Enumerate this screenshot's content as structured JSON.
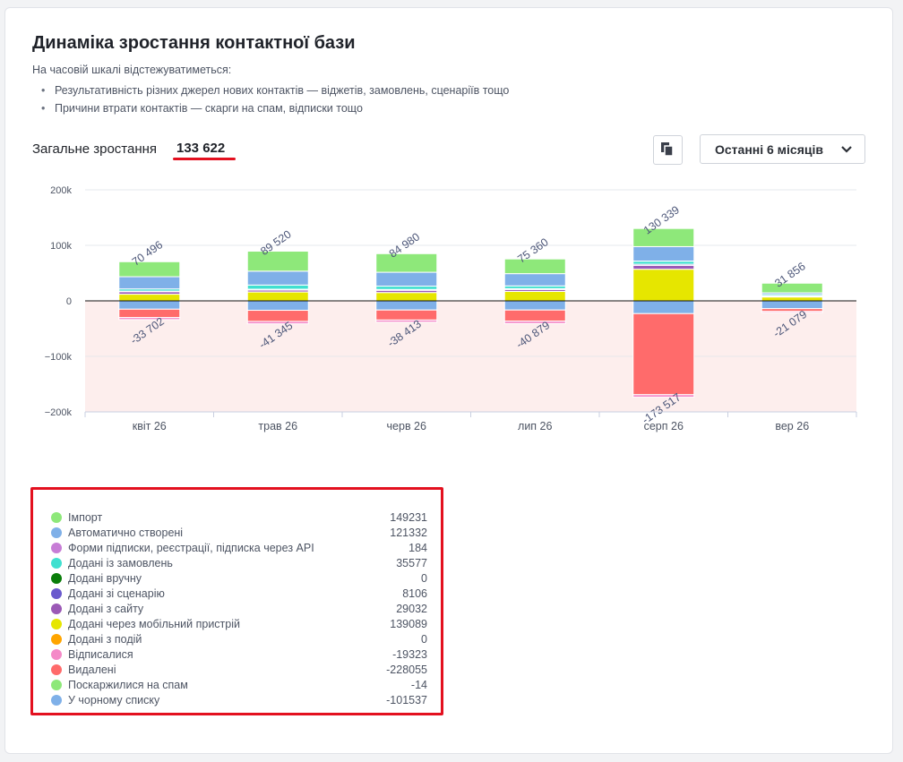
{
  "title": "Динаміка зростання контактної бази",
  "intro": "На часовій шкалі відстежуватиметься:",
  "bullets": [
    "Результативність різних джерел нових контактів — віджетів, замовлень, сценаріїв тощо",
    "Причини втрати контактів — скарги на спам, відписки тощо"
  ],
  "total": {
    "label": "Загальне зростання",
    "value": "133 622"
  },
  "controls": {
    "copy_icon": "copy-icon",
    "period_label": "Останні 6 місяців",
    "period_icon": "chevron-down-icon"
  },
  "chart_data": {
    "type": "bar",
    "stacked": true,
    "categories": [
      "квіт 26",
      "трав 26",
      "черв 26",
      "лип 26",
      "серп 26",
      "вер 26"
    ],
    "ylim": [
      -200000,
      200000
    ],
    "yticks": [
      200000,
      100000,
      0,
      -100000,
      -200000
    ],
    "ytick_labels": [
      "200k",
      "100k",
      "0",
      "−100k",
      "−200k"
    ],
    "grid": true,
    "negative_area_color": "#fdeeed",
    "positive_totals": [
      "70 496",
      "89 520",
      "84 980",
      "75 360",
      "130 339",
      "31 856"
    ],
    "negative_totals": [
      "-33 702",
      "-41 345",
      "-38 413",
      "-40 879",
      "-173 517",
      "-21 079"
    ],
    "series": [
      {
        "name": "Додані через мобільний пристрій",
        "color": "#e6e600",
        "sign": "positive",
        "values": [
          12000,
          16000,
          15000,
          17000,
          57000,
          7000
        ]
      },
      {
        "name": "Додані з сайту",
        "color": "#9b59b6",
        "sign": "positive",
        "values": [
          4500,
          3500,
          4000,
          3500,
          7000,
          1500
        ]
      },
      {
        "name": "Додані зі сценарію",
        "color": "#6a5acd",
        "sign": "positive",
        "values": [
          1000,
          1500,
          1500,
          1500,
          2000,
          500
        ]
      },
      {
        "name": "Додані із замовлень",
        "color": "#40e0d0",
        "sign": "positive",
        "values": [
          4000,
          7500,
          6000,
          5000,
          5500,
          2500
        ]
      },
      {
        "name": "Форми підписки, реєстрації, підписка через API",
        "color": "#c77dd6",
        "sign": "positive",
        "values": [
          0,
          0,
          0,
          0,
          184,
          0
        ]
      },
      {
        "name": "Автоматично створені",
        "color": "#7fb0e8",
        "sign": "positive",
        "values": [
          22000,
          25000,
          25000,
          22000,
          26000,
          3000
        ]
      },
      {
        "name": "Імпорт",
        "color": "#8ee87a",
        "sign": "positive",
        "values": [
          27000,
          36000,
          33500,
          26500,
          32656,
          17356
        ]
      },
      {
        "name": "У чорному списку",
        "color": "#7fb0e8",
        "sign": "negative",
        "values": [
          -15000,
          -17000,
          -16500,
          -16500,
          -23000,
          -14000
        ]
      },
      {
        "name": "Видалені",
        "color": "#ff6b6b",
        "sign": "negative",
        "values": [
          -15000,
          -20000,
          -18000,
          -20000,
          -146000,
          -5000
        ]
      },
      {
        "name": "Відписалися",
        "color": "#f48ac8",
        "sign": "negative",
        "values": [
          -3702,
          -4345,
          -3913,
          -4379,
          -4517,
          -2079
        ]
      }
    ],
    "legend": [
      {
        "name": "Імпорт",
        "color": "#8ee87a",
        "value": "149231"
      },
      {
        "name": "Автоматично створені",
        "color": "#7fb0e8",
        "value": "121332"
      },
      {
        "name": "Форми підписки, реєстрації, підписка через API",
        "color": "#c77dd6",
        "value": "184"
      },
      {
        "name": "Додані із замовлень",
        "color": "#40e0d0",
        "value": "35577"
      },
      {
        "name": "Додані вручну",
        "color": "#0a7d0a",
        "value": "0"
      },
      {
        "name": "Додані зі сценарію",
        "color": "#6a5acd",
        "value": "8106"
      },
      {
        "name": "Додані з сайту",
        "color": "#9b59b6",
        "value": "29032"
      },
      {
        "name": "Додані через мобільний пристрій",
        "color": "#e6e600",
        "value": "139089"
      },
      {
        "name": "Додані з подій",
        "color": "#ffa500",
        "value": "0"
      },
      {
        "name": "Відписалися",
        "color": "#f48ac8",
        "value": "-19323"
      },
      {
        "name": "Видалені",
        "color": "#ff6b6b",
        "value": "-228055"
      },
      {
        "name": "Поскаржилися на спам",
        "color": "#8ee87a",
        "value": "-14"
      },
      {
        "name": "У чорному списку",
        "color": "#7fb0e8",
        "value": "-101537"
      }
    ]
  }
}
